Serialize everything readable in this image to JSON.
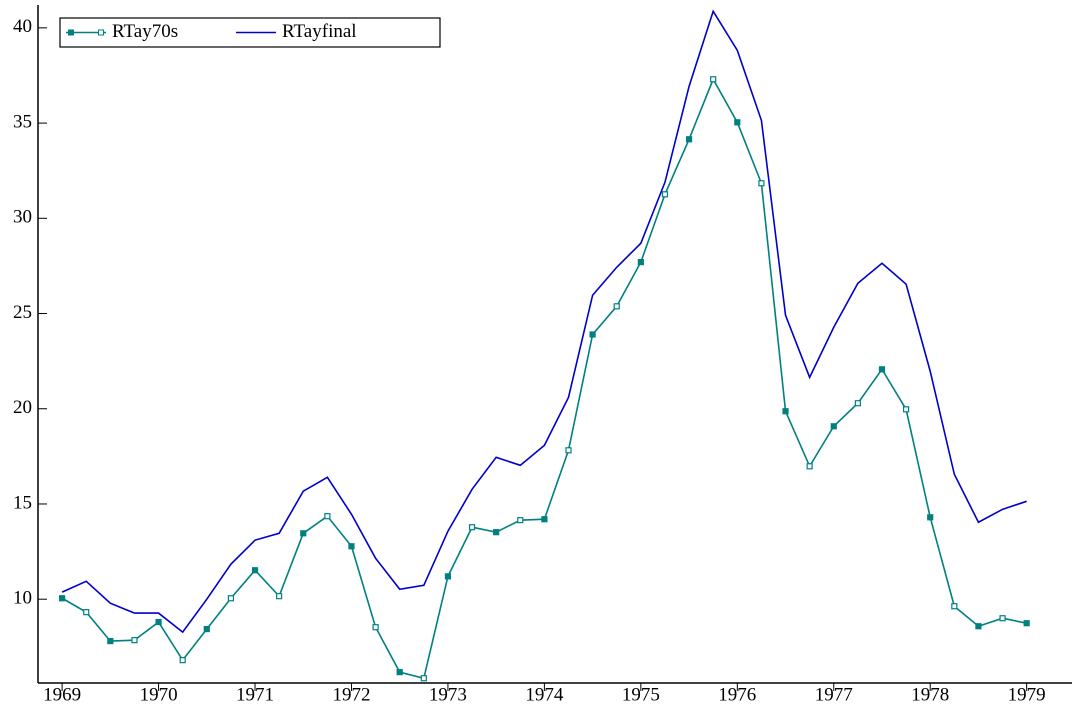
{
  "chart_data": {
    "type": "line",
    "x": [
      1969,
      1969.25,
      1969.5,
      1969.75,
      1970,
      1970.25,
      1970.5,
      1970.75,
      1971,
      1971.25,
      1971.5,
      1971.75,
      1972,
      1972.25,
      1972.5,
      1972.75,
      1973,
      1973.25,
      1973.5,
      1973.75,
      1974,
      1974.25,
      1974.5,
      1974.75,
      1975,
      1975.25,
      1975.5,
      1975.75,
      1976,
      1976.25,
      1976.5,
      1976.75,
      1977,
      1977.25,
      1977.5,
      1977.75,
      1978,
      1978.25,
      1978.5,
      1978.75,
      1979
    ],
    "series": [
      {
        "name": "RTay70s",
        "color": "#008080",
        "markers": true,
        "values": [
          10.05,
          9.32,
          7.8,
          7.85,
          8.8,
          6.8,
          8.43,
          10.05,
          11.52,
          10.16,
          13.46,
          14.36,
          12.78,
          8.53,
          6.17,
          5.85,
          11.2,
          13.78,
          13.52,
          14.15,
          14.2,
          17.82,
          23.9,
          25.38,
          27.7,
          31.26,
          34.15,
          37.3,
          35.04,
          31.84,
          19.87,
          16.98,
          19.08,
          20.29,
          22.07,
          19.97,
          14.3,
          9.63,
          8.58,
          9.0,
          8.74
        ]
      },
      {
        "name": "RTayfinal",
        "color": "#0000cc",
        "markers": false,
        "values": [
          10.37,
          10.94,
          9.79,
          9.27,
          9.27,
          8.27,
          10.0,
          11.84,
          13.1,
          13.46,
          15.67,
          16.4,
          14.46,
          12.15,
          10.52,
          10.73,
          13.57,
          15.77,
          17.45,
          17.03,
          18.08,
          20.6,
          25.96,
          27.43,
          28.69,
          31.89,
          36.93,
          40.87,
          38.82,
          35.14,
          24.91,
          21.65,
          24.28,
          26.59,
          27.64,
          26.54,
          21.97,
          16.56,
          14.04,
          14.72,
          15.14
        ]
      }
    ],
    "xlim": [
      1968.75,
      1979.47
    ],
    "ylim": [
      5.6,
      41.2
    ],
    "xticks": [
      1969,
      1970,
      1971,
      1972,
      1973,
      1974,
      1975,
      1976,
      1977,
      1978,
      1979
    ],
    "yticks": [
      10,
      15,
      20,
      25,
      30,
      35,
      40
    ],
    "legend": "top-left"
  }
}
